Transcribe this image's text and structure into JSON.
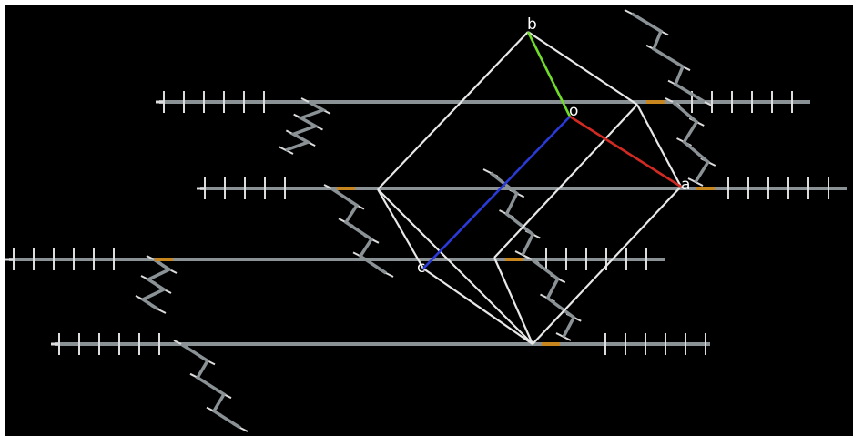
{
  "axis_labels": {
    "b": "b",
    "o": "o",
    "a": "a",
    "c": "c"
  }
}
